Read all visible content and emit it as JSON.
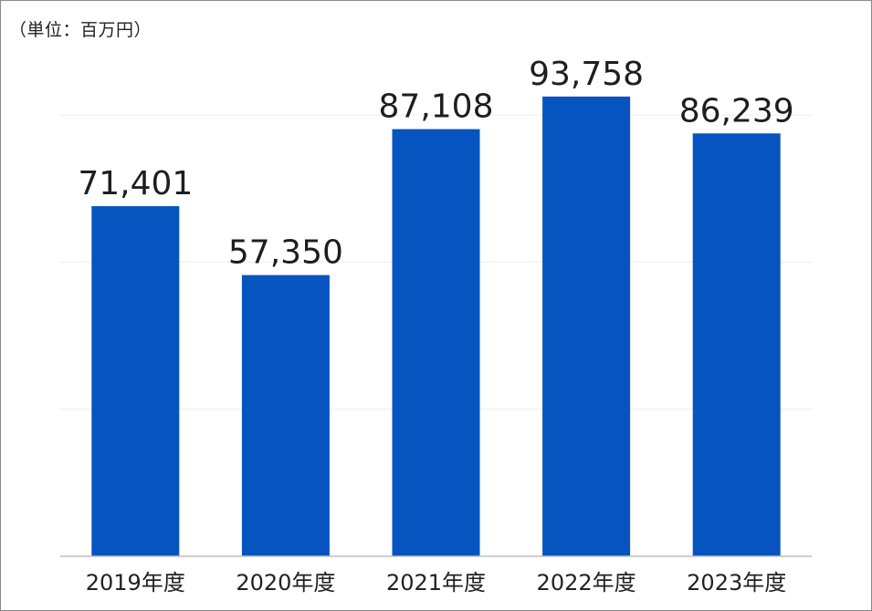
{
  "unit_label": "（単位：百万円）",
  "colors": {
    "bar": "#0654c0",
    "gridline": "#eeeeee",
    "baseline": "#bfbfbf"
  },
  "chart_data": {
    "type": "bar",
    "title": "",
    "xlabel": "",
    "ylabel": "",
    "unit": "（単位：百万円）",
    "categories": [
      "2019年度",
      "2020年度",
      "2021年度",
      "2022年度",
      "2023年度"
    ],
    "values": [
      71401,
      57350,
      87108,
      93758,
      86239
    ],
    "value_labels": [
      "71,401",
      "57,350",
      "87,108",
      "93,758",
      "86,239"
    ],
    "ylim": [
      0,
      100000
    ],
    "y_gridlines": [
      30000,
      60000,
      90000
    ],
    "grid": true,
    "legend": "none"
  }
}
